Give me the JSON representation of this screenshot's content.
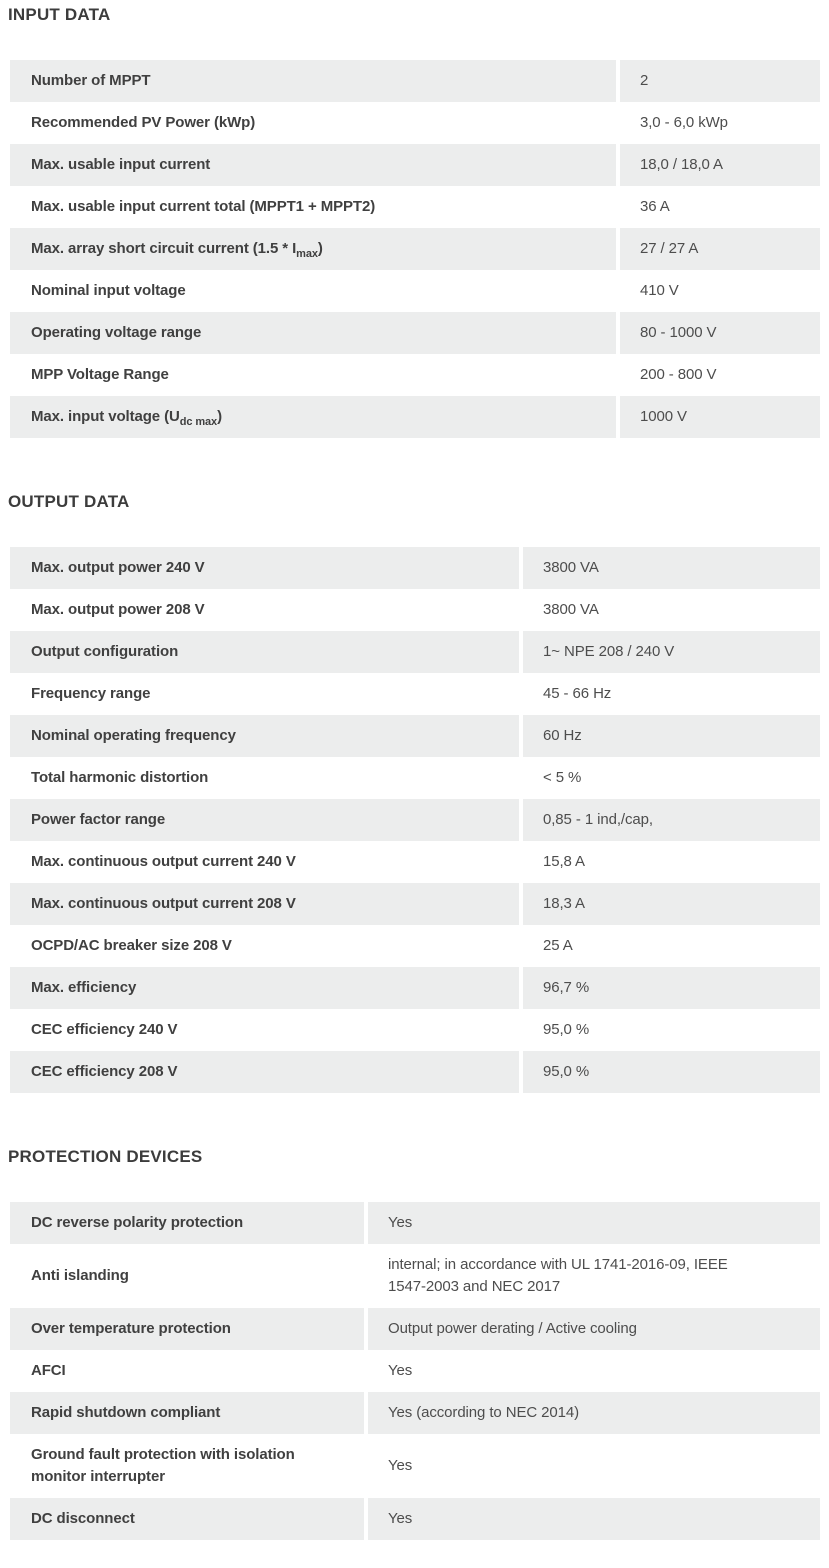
{
  "colors": {
    "row_alt_bg": "#ECEDED",
    "label_color": "#404040",
    "value_color": "#4D4D4D",
    "heading_color": "#3C3C3C"
  },
  "sections": [
    {
      "title": "INPUT DATA",
      "layout": "input",
      "rows": [
        {
          "label": "Number of MPPT",
          "value": "2"
        },
        {
          "label": "Recommended PV Power (kWp)",
          "value": "3,0 - 6,0 kWp"
        },
        {
          "label": "Max. usable input current",
          "value": "18,0 / 18,0 A"
        },
        {
          "label": "Max. usable input current total (MPPT1 + MPPT2)",
          "value": "36 A"
        },
        {
          "label_parts": [
            {
              "t": "Max. array short circuit current (1.5 * I"
            },
            {
              "t": "max",
              "sub": true
            },
            {
              "t": ")"
            }
          ],
          "value": "27 / 27 A"
        },
        {
          "label": "Nominal input voltage",
          "value": "410 V"
        },
        {
          "label": "Operating voltage range",
          "value": "80 - 1000 V"
        },
        {
          "label": "MPP Voltage Range",
          "value": "200 - 800 V"
        },
        {
          "label_parts": [
            {
              "t": "Max. input voltage (U"
            },
            {
              "t": "dc max",
              "sub": true
            },
            {
              "t": ")"
            }
          ],
          "value": "1000 V"
        }
      ]
    },
    {
      "title": "OUTPUT DATA",
      "layout": "output",
      "rows": [
        {
          "label": "Max. output power 240 V",
          "value": "3800 VA"
        },
        {
          "label": "Max. output power 208 V",
          "value": "3800 VA"
        },
        {
          "label": "Output configuration",
          "value": "1~ NPE 208 / 240 V"
        },
        {
          "label": "Frequency range",
          "value": "45 - 66 Hz"
        },
        {
          "label": "Nominal operating frequency",
          "value": "60 Hz"
        },
        {
          "label": "Total harmonic distortion",
          "value": "< 5 %"
        },
        {
          "label": "Power factor range",
          "value": "0,85 - 1 ind,/cap,"
        },
        {
          "label": "Max. continuous output current 240 V",
          "value": "15,8 A"
        },
        {
          "label": "Max. continuous output current 208 V",
          "value": "18,3 A"
        },
        {
          "label": "OCPD/AC breaker size 208 V",
          "value": "25 A"
        },
        {
          "label": "Max. efficiency",
          "value": "96,7 %"
        },
        {
          "label": "CEC efficiency 240 V",
          "value": "95,0 %"
        },
        {
          "label": "CEC efficiency 208 V",
          "value": "95,0 %"
        }
      ]
    },
    {
      "title": "PROTECTION DEVICES",
      "layout": "protection",
      "rows": [
        {
          "label": "DC reverse polarity protection",
          "value": "Yes"
        },
        {
          "label": "Anti islanding",
          "value_lines": [
            "internal; in accordance with UL 1741-2016-09, IEEE",
            "1547-2003 and NEC 2017"
          ]
        },
        {
          "label": "Over temperature protection",
          "value": "Output power derating / Active cooling"
        },
        {
          "label": "AFCI",
          "value": "Yes"
        },
        {
          "label": "Rapid shutdown compliant",
          "value": "Yes (according to NEC 2014)"
        },
        {
          "label_lines": [
            "Ground fault protection with isolation",
            "monitor interrupter"
          ],
          "value": "Yes"
        },
        {
          "label": "DC disconnect",
          "value": "Yes"
        }
      ]
    }
  ]
}
